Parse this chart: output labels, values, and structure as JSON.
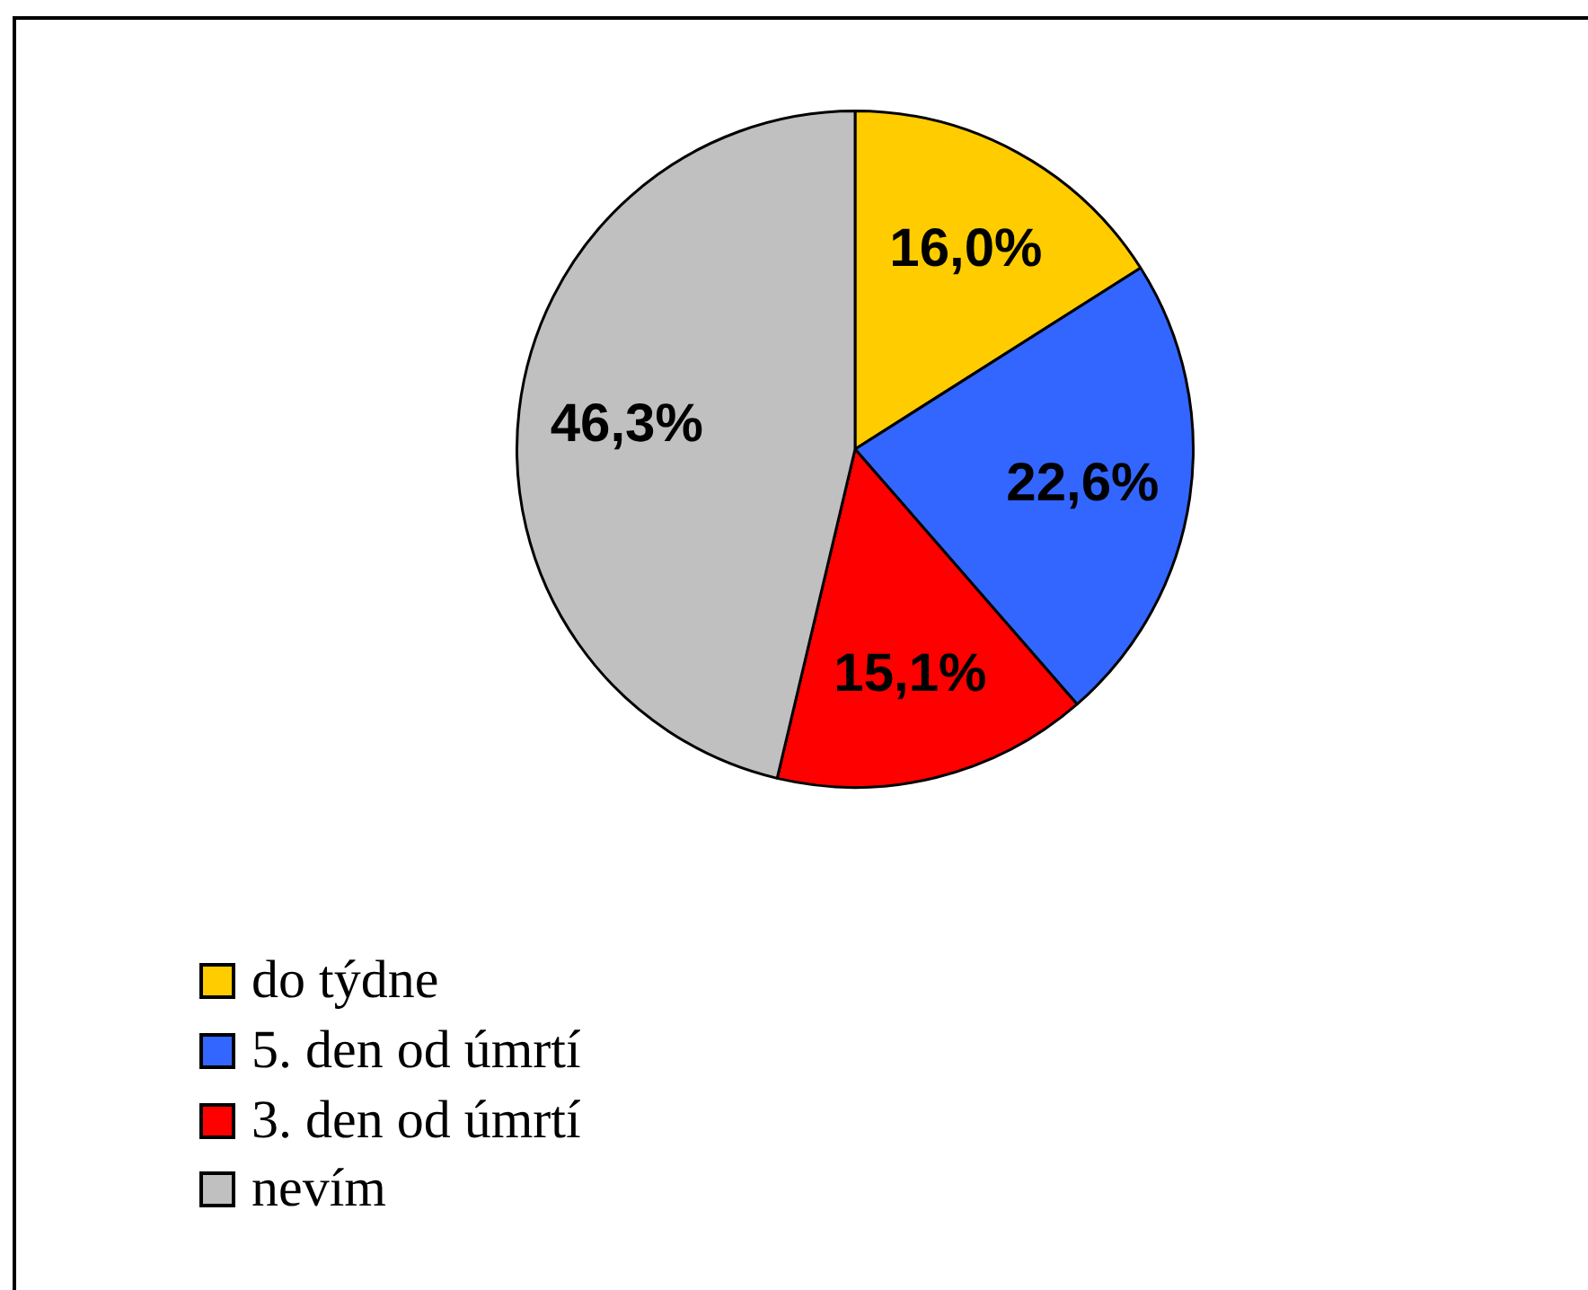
{
  "chart_data": {
    "type": "pie",
    "categories": [
      "do týdne",
      "5. den od úmrtí",
      "3. den od úmrtí",
      "nevím"
    ],
    "values": [
      16.0,
      22.6,
      15.1,
      46.3
    ],
    "colors": [
      "#ffcc00",
      "#3366ff",
      "#ff0000",
      "#c0c0c0"
    ],
    "value_labels": [
      "16,0%",
      "22,6%",
      "15,1%",
      "46,3%"
    ],
    "legend": "bottom left"
  }
}
